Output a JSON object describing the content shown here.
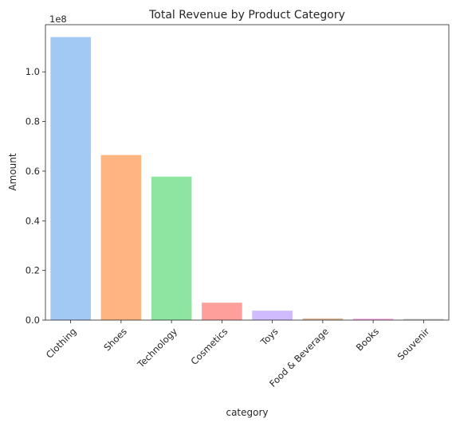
{
  "chart_data": {
    "type": "bar",
    "title": "Total Revenue by Product Category",
    "xlabel": "category",
    "ylabel": "Amount",
    "y_offset_label": "1e8",
    "categories": [
      "Clothing",
      "Shoes",
      "Technology",
      "Cosmetics",
      "Toys",
      "Food & Beverage",
      "Books",
      "Souvenir"
    ],
    "values": [
      114000000,
      66500000,
      57800000,
      7000000,
      3800000,
      700000,
      600000,
      500000
    ],
    "colors": [
      "#a1c9f4",
      "#ffb482",
      "#8de5a1",
      "#ff9f9b",
      "#d0bbff",
      "#debb9b",
      "#fab0e4",
      "#cfcfcf"
    ],
    "ylim": [
      0,
      119000000
    ],
    "yticks": [
      0,
      20000000,
      40000000,
      60000000,
      80000000,
      100000000
    ],
    "ytick_labels": [
      "0.0",
      "0.2",
      "0.4",
      "0.6",
      "0.8",
      "1.0"
    ],
    "grid": false,
    "legend": false
  }
}
